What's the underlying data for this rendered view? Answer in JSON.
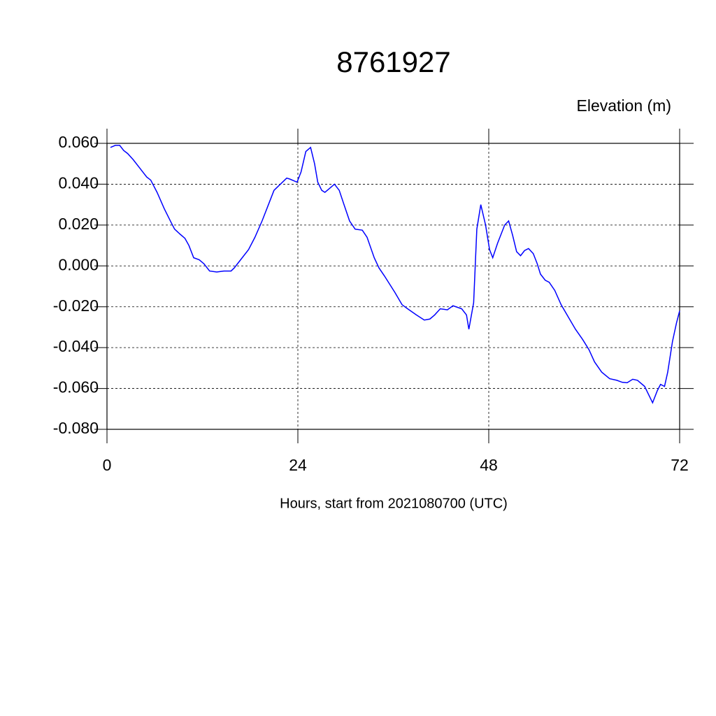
{
  "chart_data": {
    "type": "line",
    "title": "8761927",
    "y_label": "Elevation (m)",
    "x_label": "Hours, start from 2021080700 (UTC)",
    "x": [
      0.44,
      1.05,
      1.6,
      2.1,
      2.6,
      3.3,
      4.1,
      5,
      5.5,
      6.3,
      7.2,
      8.1,
      8.5,
      9.2,
      9.8,
      10.3,
      10.9,
      11.6,
      12.2,
      12.9,
      13.8,
      14.7,
      15.6,
      16,
      16.4,
      17.8,
      18.6,
      19.5,
      21,
      22.6,
      23,
      23.9,
      24.4,
      25,
      25.6,
      26.1,
      26.5,
      27,
      27.4,
      28,
      28.6,
      29.2,
      29.8,
      30.5,
      31.2,
      32.1,
      32.7,
      33.6,
      34.2,
      34.9,
      36.2,
      37.1,
      37.8,
      38.9,
      39.9,
      40.6,
      41.2,
      41.9,
      42.8,
      43.5,
      44.6,
      45.2,
      45.5,
      46.1,
      46.5,
      47,
      47.6,
      48.1,
      48.5,
      49.1,
      49.7,
      50,
      50.5,
      51,
      51.5,
      52,
      52.5,
      53,
      53.6,
      54.1,
      54.5,
      55.1,
      55.6,
      56.3,
      57.1,
      58,
      58.9,
      59.8,
      60.6,
      61.3,
      62.2,
      63.2,
      64.1,
      64.8,
      65.4,
      66.1,
      66.7,
      67.6,
      68.6,
      69.2,
      69.6,
      70.1,
      70.5,
      71.1,
      71.6,
      72
    ],
    "series": [
      {
        "name": "Elevation",
        "color": "#0000ff",
        "values": [
          0.058,
          0.059,
          0.059,
          0.0565,
          0.055,
          0.052,
          0.048,
          0.0435,
          0.042,
          0.036,
          0.028,
          0.021,
          0.018,
          0.0155,
          0.0135,
          0.01,
          0.004,
          0.003,
          0.001,
          -0.0025,
          -0.003,
          -0.0025,
          -0.0025,
          -0.001,
          0.001,
          0.008,
          0.014,
          0.022,
          0.037,
          0.043,
          0.0425,
          0.041,
          0.046,
          0.056,
          0.058,
          0.05,
          0.041,
          0.037,
          0.036,
          0.038,
          0.04,
          0.037,
          0.03,
          0.022,
          0.018,
          0.0175,
          0.014,
          0.004,
          -0.001,
          -0.005,
          -0.013,
          -0.019,
          -0.021,
          -0.024,
          -0.0265,
          -0.026,
          -0.024,
          -0.021,
          -0.0215,
          -0.0195,
          -0.021,
          -0.024,
          -0.031,
          -0.018,
          0.018,
          0.03,
          0.02,
          0.008,
          0.004,
          0.011,
          0.017,
          0.02,
          0.022,
          0.015,
          0.007,
          0.005,
          0.0075,
          0.0085,
          0.006,
          0.001,
          -0.004,
          -0.007,
          -0.008,
          -0.012,
          -0.019,
          -0.025,
          -0.031,
          -0.036,
          -0.041,
          -0.047,
          -0.052,
          -0.0552,
          -0.056,
          -0.057,
          -0.0572,
          -0.0555,
          -0.056,
          -0.059,
          -0.067,
          -0.061,
          -0.058,
          -0.059,
          -0.052,
          -0.037,
          -0.028,
          -0.022
        ]
      }
    ],
    "xlim": [
      0,
      72
    ],
    "xticks": [
      0,
      24,
      48,
      72
    ],
    "ylim": [
      -0.08,
      0.06
    ],
    "yticks": [
      {
        "value": -0.08,
        "label": "-0.080"
      },
      {
        "value": -0.06,
        "label": "-0.060"
      },
      {
        "value": -0.04,
        "label": "-0.040"
      },
      {
        "value": -0.02,
        "label": "-0.020"
      },
      {
        "value": 0,
        "label": "0.000"
      },
      {
        "value": 0.02,
        "label": "0.020"
      },
      {
        "value": 0.04,
        "label": "0.040"
      },
      {
        "value": 0.06,
        "label": "0.060"
      }
    ],
    "grid": true
  }
}
